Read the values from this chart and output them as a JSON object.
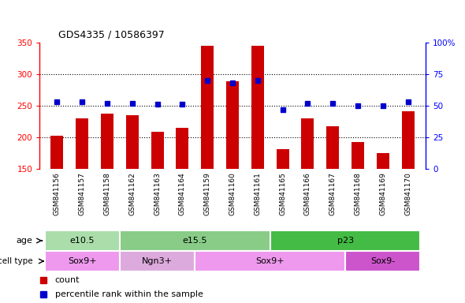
{
  "title": "GDS4335 / 10586397",
  "samples": [
    "GSM841156",
    "GSM841157",
    "GSM841158",
    "GSM841162",
    "GSM841163",
    "GSM841164",
    "GSM841159",
    "GSM841160",
    "GSM841161",
    "GSM841165",
    "GSM841166",
    "GSM841167",
    "GSM841168",
    "GSM841169",
    "GSM841170"
  ],
  "counts": [
    203,
    230,
    238,
    235,
    209,
    215,
    345,
    289,
    345,
    181,
    230,
    217,
    192,
    175,
    241
  ],
  "percentiles": [
    53,
    53,
    52,
    52,
    51,
    51,
    70,
    68,
    70,
    47,
    52,
    52,
    50,
    50,
    53
  ],
  "ylim_left": [
    150,
    350
  ],
  "ylim_right": [
    0,
    100
  ],
  "yticks_left": [
    150,
    200,
    250,
    300,
    350
  ],
  "yticks_right": [
    0,
    25,
    50,
    75,
    100
  ],
  "bar_color": "#cc0000",
  "dot_color": "#0000cc",
  "age_groups": [
    {
      "label": "e10.5",
      "start": 0,
      "end": 3,
      "color": "#aaddaa"
    },
    {
      "label": "e15.5",
      "start": 3,
      "end": 9,
      "color": "#88cc88"
    },
    {
      "label": "p23",
      "start": 9,
      "end": 15,
      "color": "#44bb44"
    }
  ],
  "cell_groups": [
    {
      "label": "Sox9+",
      "start": 0,
      "end": 3,
      "color": "#ee99ee"
    },
    {
      "label": "Ngn3+",
      "start": 3,
      "end": 6,
      "color": "#ddaadd"
    },
    {
      "label": "Sox9+",
      "start": 6,
      "end": 12,
      "color": "#ee99ee"
    },
    {
      "label": "Sox9-",
      "start": 12,
      "end": 15,
      "color": "#cc55cc"
    }
  ],
  "bg_color": "#ffffff",
  "tick_bg": "#cccccc",
  "plot_bg": "#ffffff"
}
